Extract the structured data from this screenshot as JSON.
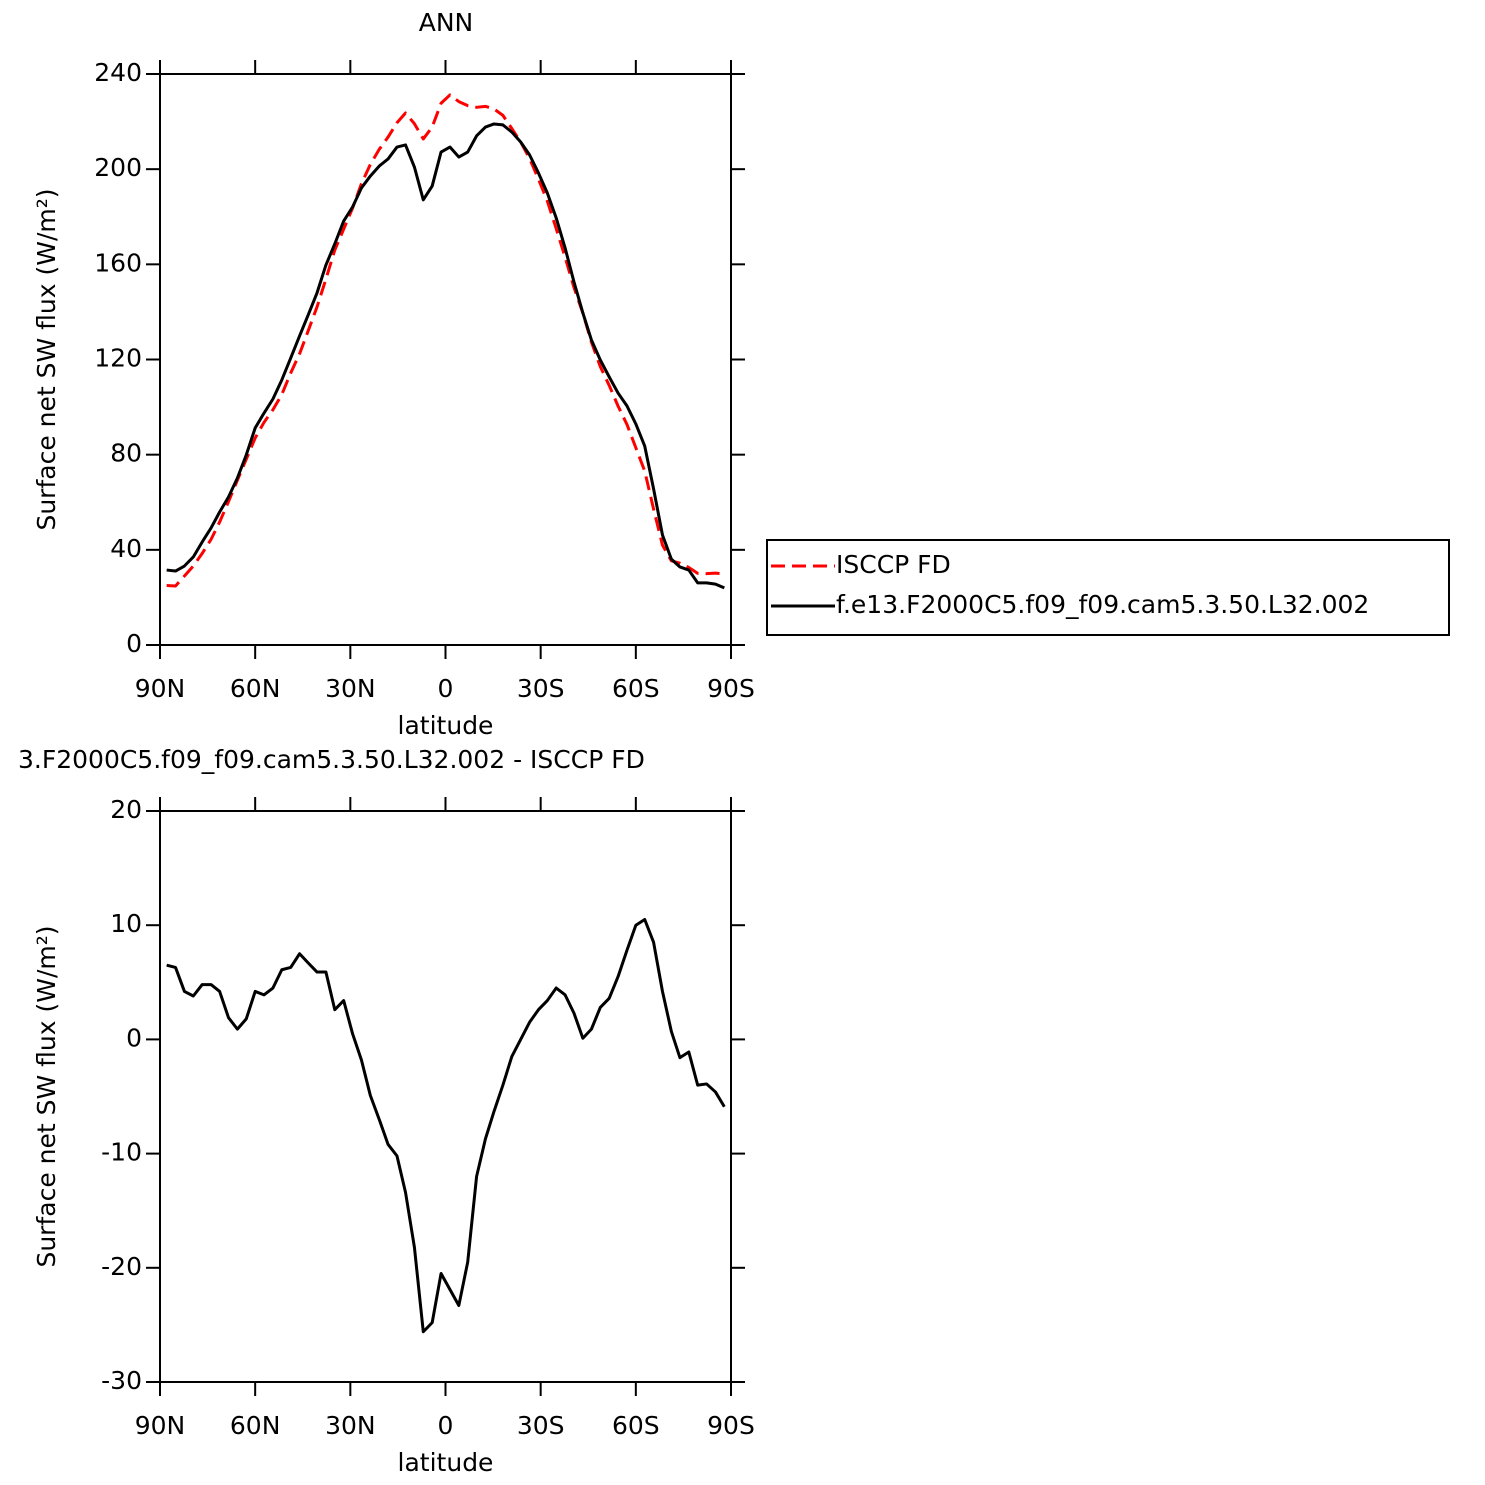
{
  "chart_data": [
    {
      "type": "line",
      "title": "ANN",
      "xlabel": "latitude",
      "ylabel": "Surface net SW flux (W/m²)",
      "x": [
        87.9,
        85.1,
        82.3,
        79.5,
        76.7,
        73.9,
        71.2,
        68.4,
        65.6,
        62.8,
        60.0,
        57.2,
        54.4,
        51.6,
        48.8,
        46.0,
        43.3,
        40.5,
        37.7,
        34.9,
        32.1,
        29.3,
        26.5,
        23.7,
        20.9,
        18.1,
        15.3,
        12.6,
        9.8,
        7.0,
        4.2,
        1.4,
        -1.4,
        -4.2,
        -7.0,
        -9.8,
        -12.6,
        -15.3,
        -18.1,
        -20.9,
        -23.7,
        -26.5,
        -29.3,
        -32.1,
        -34.9,
        -37.7,
        -40.5,
        -43.3,
        -46.0,
        -48.8,
        -51.6,
        -54.4,
        -57.2,
        -60.0,
        -62.8,
        -65.6,
        -68.4,
        -71.2,
        -73.9,
        -76.7,
        -79.5,
        -82.3,
        -85.1,
        -87.9
      ],
      "series": [
        {
          "name": "ISCCP FD",
          "color": "#ff0000",
          "line_style": "dashed",
          "values": [
            25.0,
            24.8,
            29.0,
            33.2,
            38.5,
            44.4,
            51.7,
            60.3,
            69.3,
            78.1,
            87.0,
            93.6,
            98.9,
            105.3,
            114.3,
            122.4,
            132.0,
            142.1,
            153.8,
            166.0,
            174.8,
            183.6,
            193.9,
            202.0,
            208.3,
            213.5,
            219.5,
            223.6,
            219.1,
            212.7,
            217.7,
            227.7,
            231.2,
            228.4,
            226.7,
            226.0,
            226.4,
            225.3,
            222.6,
            217.1,
            211.4,
            204.5,
            195.8,
            186.6,
            175.0,
            163.0,
            150.3,
            139.5,
            127.3,
            117.0,
            109.1,
            100.4,
            92.7,
            82.9,
            73.1,
            57.1,
            42.0,
            35.4,
            34.4,
            32.6,
            30.1,
            30.0,
            30.2,
            29.9
          ]
        },
        {
          "name": "f.e13.F2000C5.f09_f09.cam5.3.50.L32.002",
          "color": "#000000",
          "line_style": "solid",
          "values": [
            31.5,
            31.1,
            33.2,
            37.0,
            43.3,
            49.2,
            55.9,
            62.2,
            70.2,
            79.9,
            91.2,
            97.5,
            103.4,
            111.4,
            120.6,
            129.9,
            138.7,
            148.0,
            159.7,
            168.6,
            178.2,
            184.1,
            192.1,
            197.1,
            201.3,
            204.3,
            209.3,
            210.2,
            200.9,
            187.1,
            192.9,
            207.2,
            209.3,
            205.1,
            207.2,
            214.0,
            217.7,
            219.0,
            218.6,
            215.6,
            211.4,
            206.0,
            198.4,
            190.0,
            179.5,
            166.9,
            152.6,
            139.6,
            128.2,
            119.8,
            112.7,
            105.9,
            100.5,
            92.9,
            83.6,
            65.6,
            46.2,
            36.1,
            32.8,
            31.5,
            26.1,
            26.1,
            25.6,
            24.0
          ]
        }
      ],
      "xlim": [
        90,
        -90
      ],
      "xticks": [
        {
          "value": 90,
          "label": "90N"
        },
        {
          "value": 60,
          "label": "60N"
        },
        {
          "value": 30,
          "label": "30N"
        },
        0,
        {
          "value": -30,
          "label": "30S"
        },
        {
          "value": -60,
          "label": "60S"
        },
        {
          "value": -90,
          "label": "90S"
        }
      ],
      "ylim": [
        0,
        240
      ],
      "yticks": [
        0,
        40,
        80,
        120,
        160,
        200,
        240
      ],
      "legend": "right"
    },
    {
      "type": "line",
      "title": "3.F2000C5.f09_f09.cam5.3.50.L32.002 - ISCCP FD",
      "xlabel": "latitude",
      "ylabel": "Surface net SW flux (W/m²)",
      "x": [
        87.9,
        85.1,
        82.3,
        79.5,
        76.7,
        73.9,
        71.2,
        68.4,
        65.6,
        62.8,
        60.0,
        57.2,
        54.4,
        51.6,
        48.8,
        46.0,
        43.3,
        40.5,
        37.7,
        34.9,
        32.1,
        29.3,
        26.5,
        23.7,
        20.9,
        18.1,
        15.3,
        12.6,
        9.8,
        7.0,
        4.2,
        1.4,
        -1.4,
        -4.2,
        -7.0,
        -9.8,
        -12.6,
        -15.3,
        -18.1,
        -20.9,
        -23.7,
        -26.5,
        -29.3,
        -32.1,
        -34.9,
        -37.7,
        -40.5,
        -43.3,
        -46.0,
        -48.8,
        -51.6,
        -54.4,
        -57.2,
        -60.0,
        -62.8,
        -65.6,
        -68.4,
        -71.2,
        -73.9,
        -76.7,
        -79.5,
        -82.3,
        -85.1,
        -87.9
      ],
      "values": [
        6.5,
        6.3,
        4.2,
        3.8,
        4.8,
        4.8,
        4.2,
        1.9,
        0.9,
        1.8,
        4.2,
        3.9,
        4.5,
        6.1,
        6.3,
        7.5,
        6.7,
        5.9,
        5.9,
        2.6,
        3.4,
        0.5,
        -1.8,
        -4.9,
        -7.0,
        -9.2,
        -10.2,
        -13.4,
        -18.2,
        -25.6,
        -24.8,
        -20.5,
        -21.9,
        -23.3,
        -19.5,
        -12.0,
        -8.7,
        -6.3,
        -4.0,
        -1.5,
        0.0,
        1.5,
        2.6,
        3.4,
        4.5,
        3.9,
        2.3,
        0.1,
        0.9,
        2.8,
        3.6,
        5.5,
        7.8,
        10.0,
        10.5,
        8.5,
        4.2,
        0.7,
        -1.6,
        -1.1,
        -4.0,
        -3.9,
        -4.6,
        -5.9
      ],
      "color": "#000000",
      "xlim": [
        90,
        -90
      ],
      "xticks": [
        {
          "value": 90,
          "label": "90N"
        },
        {
          "value": 60,
          "label": "60N"
        },
        {
          "value": 30,
          "label": "30N"
        },
        0,
        {
          "value": -30,
          "label": "30S"
        },
        {
          "value": -60,
          "label": "60S"
        },
        {
          "value": -90,
          "label": "90S"
        }
      ],
      "ylim": [
        -30,
        20
      ],
      "yticks": [
        -30,
        -20,
        -10,
        0,
        10,
        20
      ]
    }
  ]
}
